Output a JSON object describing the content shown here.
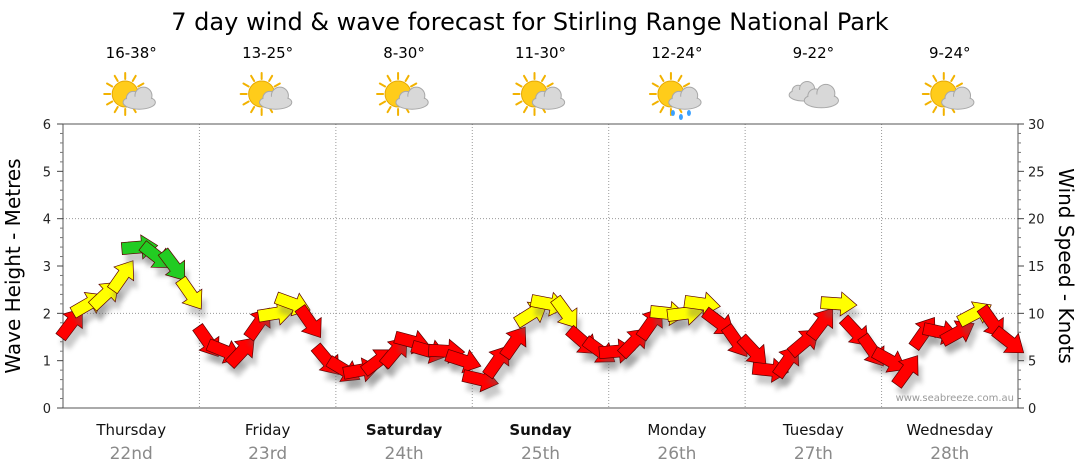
{
  "chart_data": {
    "type": "line",
    "title": "7 day wind & wave forecast for Stirling Range National Park",
    "ylabel_left": "Wave Height - Metres",
    "ylabel_right": "Wind Speed - Knots",
    "ylim_left": [
      0,
      6
    ],
    "ylim_right": [
      0,
      30
    ],
    "left_ticks": [
      "0",
      "1",
      "2",
      "3",
      "4",
      "5",
      "6"
    ],
    "right_ticks": [
      "0",
      "5",
      "10",
      "15",
      "20",
      "25",
      "30"
    ],
    "watermark": "www.seabreeze.com.au",
    "days": [
      {
        "name": "Thursday",
        "date": "22nd",
        "temp": "16-38°",
        "weather": "partly-cloudy",
        "bold": false
      },
      {
        "name": "Friday",
        "date": "23rd",
        "temp": "13-25°",
        "weather": "partly-cloudy",
        "bold": false
      },
      {
        "name": "Saturday",
        "date": "24th",
        "temp": "8-30°",
        "weather": "partly-cloudy",
        "bold": true
      },
      {
        "name": "Sunday",
        "date": "25th",
        "temp": "11-30°",
        "weather": "partly-cloudy",
        "bold": true
      },
      {
        "name": "Monday",
        "date": "26th",
        "temp": "12-24°",
        "weather": "showers",
        "bold": false
      },
      {
        "name": "Tuesday",
        "date": "27th",
        "temp": "9-22°",
        "weather": "cloudy",
        "bold": false
      },
      {
        "name": "Wednesday",
        "date": "28th",
        "temp": "9-24°",
        "weather": "partly-cloudy",
        "bold": false
      }
    ],
    "series": [
      {
        "name": "Wind speed (knots)",
        "axis": "right",
        "x_hours": [
          0,
          3,
          6,
          9,
          12,
          15,
          18,
          21,
          24,
          27,
          30,
          33,
          36,
          39,
          42,
          45,
          48,
          51,
          54,
          57,
          60,
          63,
          66,
          69,
          72,
          75,
          78,
          81,
          84,
          87,
          90,
          93,
          96,
          99,
          102,
          105,
          108,
          111,
          114,
          117,
          120,
          123,
          126,
          129,
          132,
          135,
          138,
          141,
          144,
          147,
          150,
          153,
          156,
          159,
          162,
          165
        ],
        "values": [
          9,
          11,
          12,
          14,
          17,
          16,
          15,
          12,
          7,
          6,
          6,
          9,
          10,
          11,
          9,
          5,
          4,
          4,
          5,
          6,
          7,
          6,
          6,
          5,
          3,
          5,
          7,
          10,
          11,
          10,
          7,
          6,
          6,
          7,
          9,
          10,
          10,
          11,
          9,
          7,
          6,
          4,
          5,
          7,
          9,
          11,
          8,
          6,
          5,
          4,
          8,
          8,
          8,
          10,
          9,
          7
        ],
        "colors": {
          "under_10": "#ff0000",
          "10_to_15": "#ffff00",
          "15_to_20": "#22cc22"
        }
      }
    ]
  }
}
